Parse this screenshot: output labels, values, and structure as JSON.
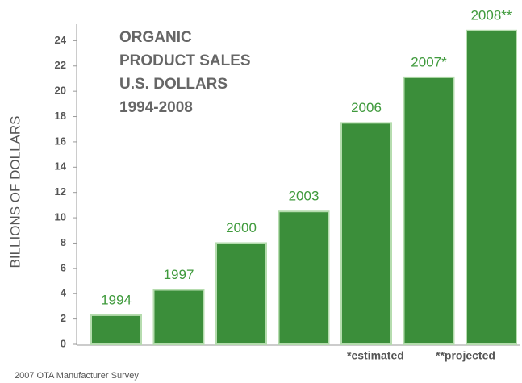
{
  "chart_data": {
    "type": "bar",
    "title": [
      "ORGANIC",
      "PRODUCT SALES",
      "U.S. DOLLARS",
      "1994-2008"
    ],
    "y_label": "BILLIONS OF DOLLARS",
    "categories": [
      "1994",
      "1997",
      "2000",
      "2003",
      "2006",
      "2007*",
      "2008**"
    ],
    "values": [
      2.3,
      4.3,
      8.0,
      10.5,
      17.5,
      21.1,
      24.8
    ],
    "color": "#3b8e3a",
    "ylim": [
      0,
      26
    ],
    "yticks": [
      0,
      2,
      4,
      6,
      8,
      10,
      12,
      14,
      16,
      18,
      20,
      22,
      24
    ],
    "annotations": [
      "*estimated",
      "**projected"
    ],
    "source": "2007 OTA Manufacturer Survey"
  }
}
